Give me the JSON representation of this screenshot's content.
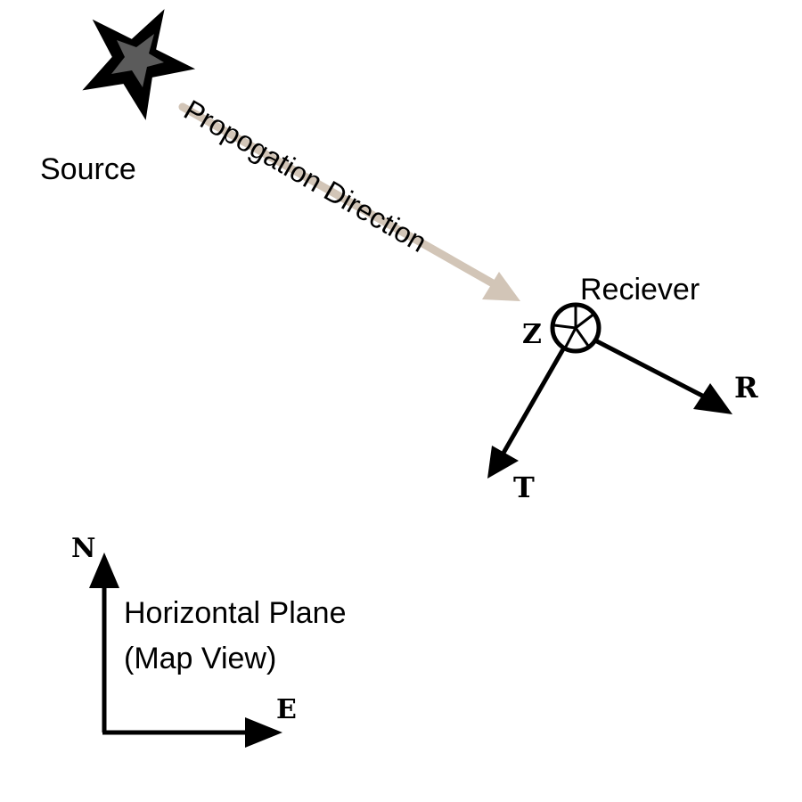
{
  "labels": {
    "source": "Source",
    "propagation": "Propogation Direction",
    "receiver": "Reciever",
    "z_axis": "Z",
    "r_axis": "R",
    "t_axis": "T",
    "north": "N",
    "east": "E",
    "plane_line1": "Horizontal Plane",
    "plane_line2": "(Map View)"
  },
  "colors": {
    "background": "#ffffff",
    "ink": "#000000",
    "star_fill": "#555555",
    "propagation_arrow": "#d2c5b7"
  },
  "icons": {
    "source": "star-icon",
    "receiver": "circle-with-cross-icon"
  }
}
